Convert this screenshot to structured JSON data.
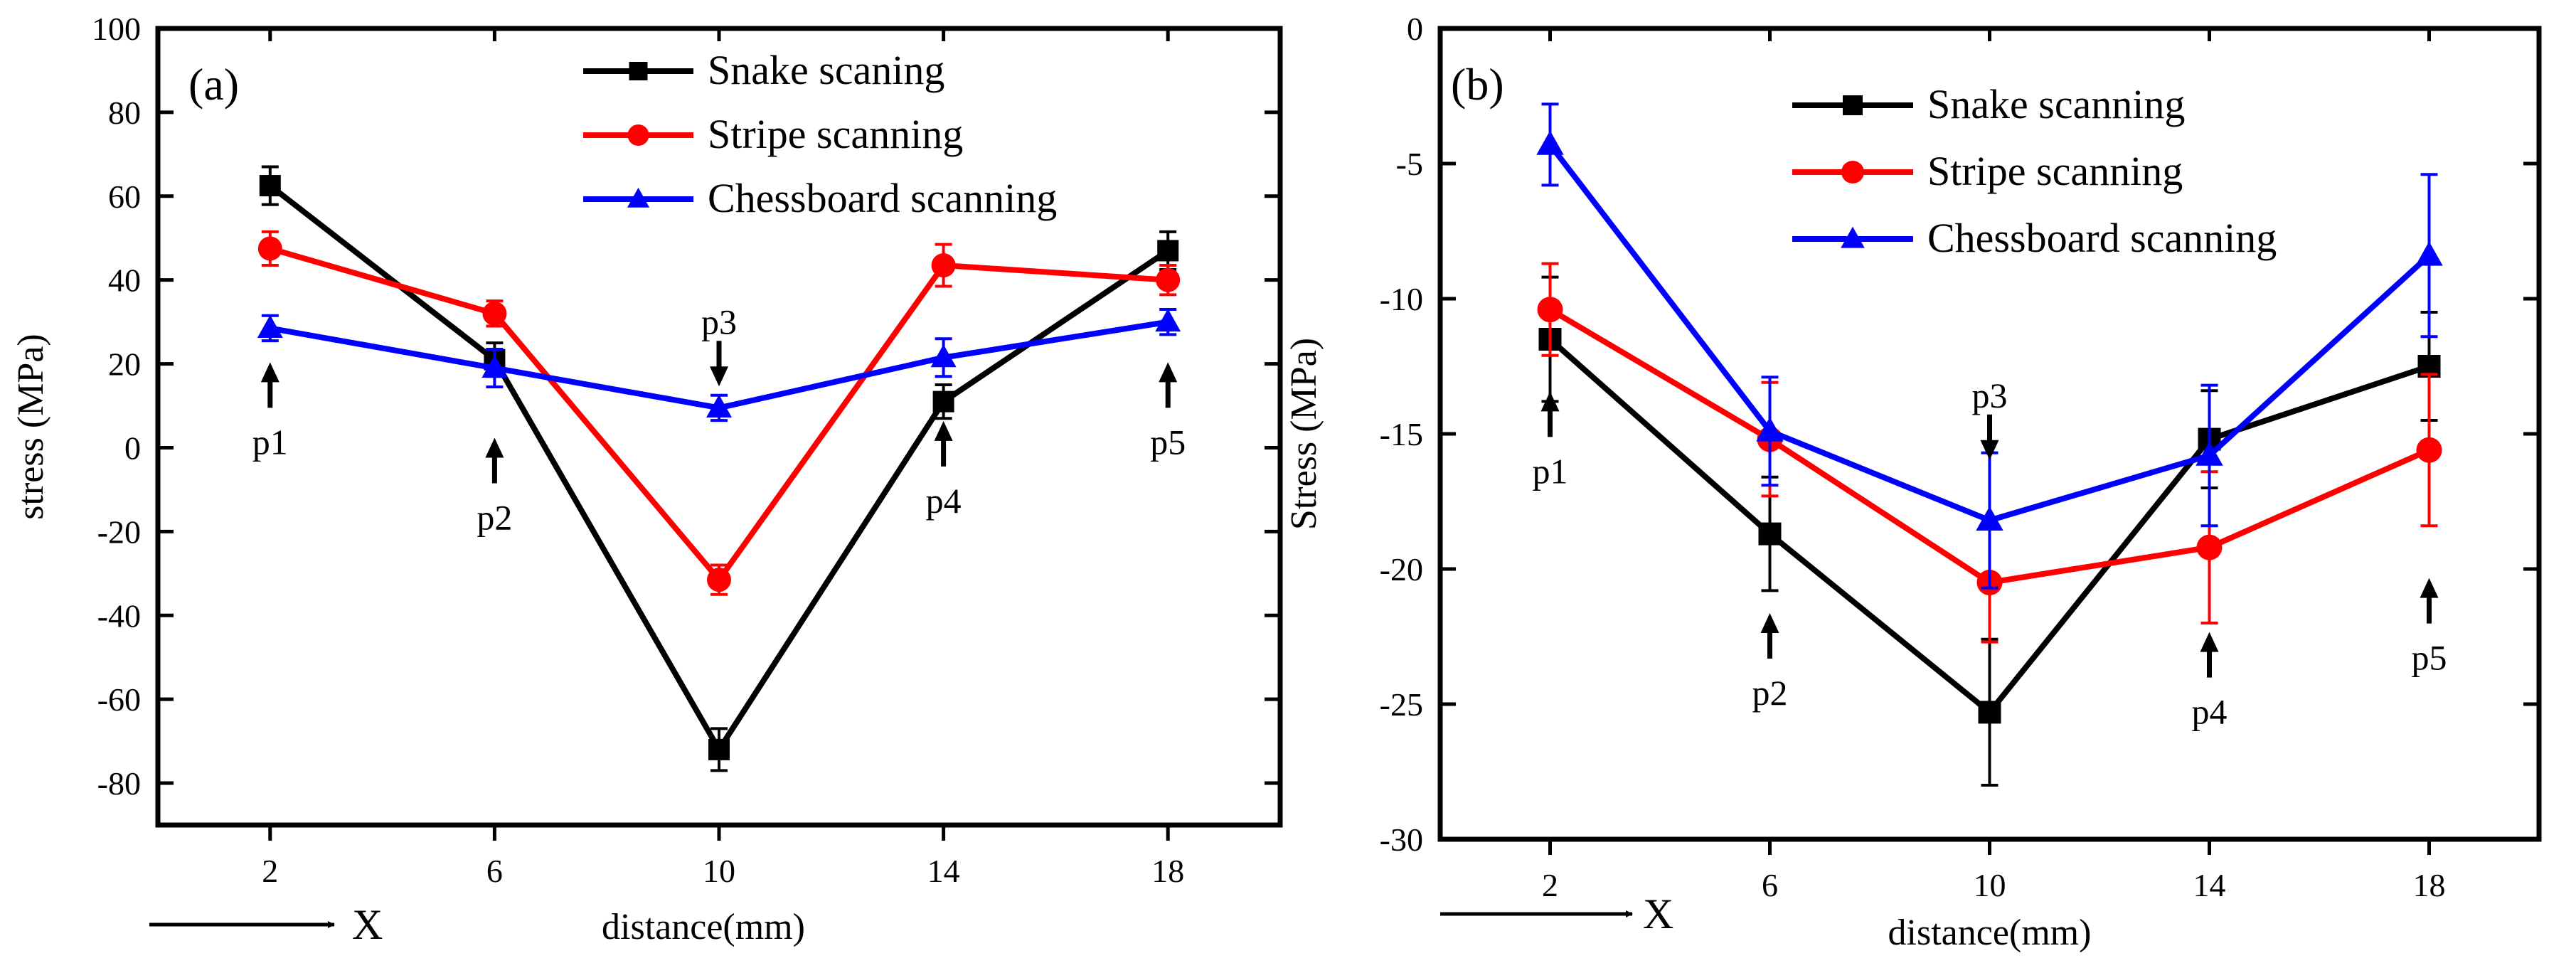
{
  "chart_data": [
    {
      "type": "line",
      "panel_label": "(a)",
      "xlabel": "distance(mm)",
      "ylabel": "stress (MPa)",
      "direction_label": "X",
      "x": [
        2,
        6,
        10,
        14,
        18
      ],
      "xticks": [
        "2",
        "6",
        "10",
        "14",
        "18"
      ],
      "xlim": [
        0,
        20
      ],
      "ylim": [
        -90,
        100
      ],
      "yticks": [
        100,
        80,
        60,
        40,
        20,
        0,
        -20,
        -40,
        -60,
        -80
      ],
      "legend_position": "top-center",
      "series": [
        {
          "name": "Snake scaning",
          "color": "#000000",
          "marker": "square",
          "values": [
            62.5,
            21,
            -72,
            11,
            47
          ],
          "errors": [
            4.5,
            4,
            5,
            4,
            4.5
          ]
        },
        {
          "name": "Stripe scanning",
          "color": "#ff0000",
          "marker": "circle",
          "values": [
            47.5,
            32,
            -31.5,
            43.5,
            40
          ],
          "errors": [
            4,
            3,
            3.5,
            5,
            3.5
          ]
        },
        {
          "name": "Chessboard scanning",
          "color": "#0000ff",
          "marker": "triangle",
          "values": [
            28.5,
            19,
            9.5,
            21.5,
            30
          ],
          "errors": [
            3,
            4.5,
            3,
            4.5,
            3
          ]
        }
      ],
      "annotations": [
        {
          "label": "p1",
          "x": 2,
          "arrow_y": 18,
          "direction": "up"
        },
        {
          "label": "p2",
          "x": 6,
          "arrow_y": 0,
          "direction": "up"
        },
        {
          "label": "p3",
          "x": 10,
          "arrow_y": 17,
          "direction": "down"
        },
        {
          "label": "p4",
          "x": 14,
          "arrow_y": 4,
          "direction": "up"
        },
        {
          "label": "p5",
          "x": 18,
          "arrow_y": 18,
          "direction": "up"
        }
      ]
    },
    {
      "type": "line",
      "panel_label": "(b)",
      "xlabel": "distance(mm)",
      "ylabel": "Stress (MPa)",
      "direction_label": "X",
      "x": [
        2,
        6,
        10,
        14,
        18
      ],
      "xticks": [
        "2",
        "6",
        "10",
        "14",
        "18"
      ],
      "xlim": [
        0,
        20
      ],
      "ylim": [
        -30,
        0
      ],
      "yticks": [
        0,
        -5,
        -10,
        -15,
        -20,
        -25,
        -30
      ],
      "legend_position": "top-right",
      "series": [
        {
          "name": "Snake scanning",
          "color": "#000000",
          "marker": "square",
          "values": [
            -11.5,
            -18.7,
            -25.3,
            -15.2,
            -12.5
          ],
          "errors": [
            2.3,
            2.1,
            2.7,
            1.8,
            2.0
          ]
        },
        {
          "name": "Stripe scanning",
          "color": "#ff0000",
          "marker": "circle",
          "values": [
            -10.4,
            -15.2,
            -20.5,
            -19.2,
            -15.6
          ],
          "errors": [
            1.7,
            2.1,
            2.2,
            2.8,
            2.8
          ]
        },
        {
          "name": "Chessboard scanning",
          "color": "#0000ff",
          "marker": "triangle",
          "values": [
            -4.3,
            -14.9,
            -18.2,
            -15.8,
            -8.4
          ],
          "errors": [
            1.5,
            2.0,
            2.5,
            2.6,
            3.0
          ]
        }
      ],
      "annotations": [
        {
          "label": "p1",
          "x": 2,
          "arrow_y": -13.8,
          "direction": "up"
        },
        {
          "label": "p2",
          "x": 6,
          "arrow_y": -22.0,
          "direction": "up"
        },
        {
          "label": "p3",
          "x": 10,
          "arrow_y": -15.6,
          "direction": "down"
        },
        {
          "label": "p4",
          "x": 14,
          "arrow_y": -22.7,
          "direction": "up"
        },
        {
          "label": "p5",
          "x": 18,
          "arrow_y": -20.7,
          "direction": "up"
        }
      ]
    }
  ]
}
